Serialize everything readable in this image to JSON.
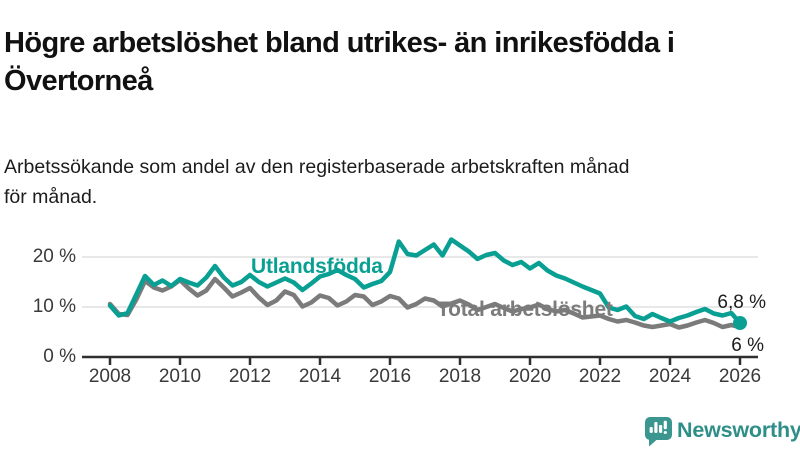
{
  "header": {
    "title_line1": "Högre arbetslöshet bland utrikes- än inrikesfödda i",
    "title_line2": "Övertorneå",
    "subtitle_line1": "Arbetssökande som andel av den registerbaserade arbetskraften månad",
    "subtitle_line2": "för månad."
  },
  "footer": {
    "brand": "Newsworthy",
    "logo_icon": "newsworthy-bubble-bar-chart-icon",
    "brand_color": "#2F8F88"
  },
  "colors": {
    "accent_teal": "#09a093",
    "series_gray": "#7b7b7b",
    "gridline": "#d9d9d9",
    "axis": "#2e2e2e",
    "text": "#1c1c1c"
  },
  "chart_data": {
    "type": "line",
    "title": "Högre arbetslöshet bland utrikes- än inrikesfödda i Övertorneå",
    "subtitle": "Arbetssökande som andel av den registerbaserade arbetskraften månad för månad.",
    "xlabel": "",
    "ylabel": "",
    "grid": "horizontal",
    "legend_position": "inline-labels",
    "ylim": [
      0,
      24
    ],
    "xlim": [
      2007.3,
      2026.5
    ],
    "x_start": 2008,
    "x_step": 0.25,
    "x_ticks": [
      {
        "value": 2008,
        "label": "2008"
      },
      {
        "value": 2010,
        "label": "2010"
      },
      {
        "value": 2012,
        "label": "2012"
      },
      {
        "value": 2014,
        "label": "2014"
      },
      {
        "value": 2016,
        "label": "2016"
      },
      {
        "value": 2018,
        "label": "2018"
      },
      {
        "value": 2020,
        "label": "2020"
      },
      {
        "value": 2022,
        "label": "2022"
      },
      {
        "value": 2024,
        "label": "2024"
      },
      {
        "value": 2026,
        "label": "2026"
      }
    ],
    "y_ticks": [
      {
        "value": 20,
        "label": "20 %"
      },
      {
        "value": 10,
        "label": "10 %"
      },
      {
        "value": 0,
        "label": "0 %"
      }
    ],
    "series": [
      {
        "name": "Utlandsfödda",
        "color": "#09a093",
        "end_label": "6,8 %",
        "end_dot": true,
        "values": [
          10.3,
          8.3,
          8.8,
          12.5,
          16.2,
          14.4,
          15.3,
          14.2,
          15.6,
          14.9,
          14.3,
          15.9,
          18.2,
          15.9,
          14.3,
          15.0,
          16.4,
          15.0,
          14.1,
          14.9,
          15.7,
          14.9,
          13.4,
          14.7,
          16.1,
          16.6,
          17.4,
          16.4,
          15.6,
          13.9,
          14.6,
          15.2,
          17.0,
          23.1,
          20.6,
          20.3,
          21.4,
          22.5,
          20.3,
          23.5,
          22.3,
          21.1,
          19.6,
          20.4,
          20.8,
          19.3,
          18.4,
          19.0,
          17.7,
          18.8,
          17.3,
          16.3,
          15.7,
          14.9,
          14.1,
          13.4,
          12.7,
          9.9,
          9.4,
          10.1,
          8.2,
          7.6,
          8.6,
          7.8,
          7.1,
          7.8,
          8.3,
          9.0,
          9.6,
          8.7,
          8.3,
          8.8,
          6.8
        ]
      },
      {
        "name": "Total arbetslöshet",
        "color": "#7b7b7b",
        "end_label": "6 %",
        "end_dot": false,
        "values": [
          10.6,
          8.6,
          8.4,
          11.5,
          15.2,
          13.9,
          13.3,
          14.1,
          15.4,
          13.7,
          12.3,
          13.3,
          15.6,
          13.9,
          12.1,
          12.9,
          13.8,
          11.9,
          10.4,
          11.3,
          13.1,
          12.4,
          10.1,
          10.9,
          12.3,
          11.8,
          10.3,
          11.1,
          12.4,
          12.1,
          10.4,
          11.1,
          12.2,
          11.7,
          9.9,
          10.6,
          11.7,
          11.3,
          10.1,
          10.7,
          11.3,
          10.5,
          9.4,
          10.0,
          10.6,
          9.8,
          9.1,
          9.6,
          9.9,
          10.5,
          9.6,
          9.1,
          9.4,
          8.7,
          7.9,
          8.1,
          8.3,
          7.6,
          7.1,
          7.4,
          6.9,
          6.3,
          6.0,
          6.3,
          6.6,
          5.9,
          6.3,
          6.9,
          7.4,
          6.8,
          6.0,
          6.4,
          6.0
        ]
      }
    ]
  }
}
